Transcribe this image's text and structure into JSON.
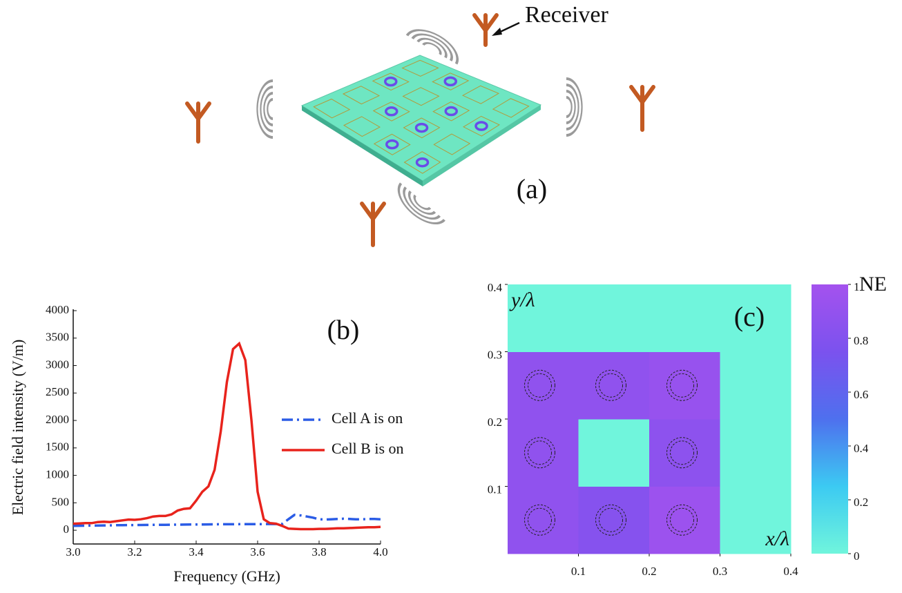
{
  "diagram": {
    "receiver_label": "Receiver",
    "panel_label": "(a)"
  },
  "chart_data": [
    {
      "type": "line",
      "panel_label": "(b)",
      "x_label": "Frequency (GHz)",
      "y_label": "Electric field intensity (V/m)",
      "x": [
        3.0,
        3.02,
        3.04,
        3.06,
        3.08,
        3.1,
        3.12,
        3.14,
        3.16,
        3.18,
        3.2,
        3.22,
        3.24,
        3.26,
        3.28,
        3.3,
        3.32,
        3.34,
        3.36,
        3.38,
        3.4,
        3.42,
        3.44,
        3.46,
        3.48,
        3.5,
        3.52,
        3.54,
        3.56,
        3.58,
        3.6,
        3.62,
        3.64,
        3.66,
        3.68,
        3.7,
        3.72,
        3.74,
        3.76,
        3.78,
        3.8,
        3.82,
        3.84,
        3.86,
        3.88,
        3.9,
        3.92,
        3.94,
        3.96,
        3.98,
        4.0
      ],
      "series": [
        {
          "name": "Cell A is on",
          "color": "#2b5ce6",
          "dash": "dashdot",
          "values": [
            80,
            82,
            84,
            85,
            86,
            88,
            90,
            92,
            93,
            94,
            95,
            96,
            97,
            98,
            99,
            100,
            101,
            102,
            103,
            104,
            105,
            106,
            107,
            108,
            109,
            110,
            110,
            111,
            111,
            112,
            112,
            112,
            113,
            113,
            115,
            200,
            280,
            270,
            250,
            230,
            200,
            195,
            200,
            205,
            210,
            205,
            200,
            200,
            205,
            205,
            200
          ]
        },
        {
          "name": "Cell B is on",
          "color": "#e8231c",
          "dash": "solid",
          "values": [
            120,
            125,
            130,
            130,
            150,
            155,
            150,
            165,
            180,
            195,
            190,
            200,
            220,
            250,
            260,
            260,
            290,
            360,
            390,
            400,
            540,
            700,
            800,
            1100,
            1800,
            2700,
            3300,
            3400,
            3100,
            2000,
            700,
            200,
            130,
            120,
            80,
            30,
            25,
            20,
            20,
            20,
            25,
            25,
            30,
            35,
            35,
            40,
            45,
            50,
            55,
            55,
            60
          ]
        }
      ],
      "xlim": [
        3.0,
        4.0
      ],
      "xticks": [
        {
          "value": 3,
          "label": "3.0"
        },
        3.2,
        3.4,
        3.6,
        3.8,
        {
          "value": 4,
          "label": "4.0"
        }
      ],
      "ylim": [
        -250,
        4000
      ],
      "yticks": [
        0,
        500,
        1000,
        1500,
        2000,
        2500,
        3000,
        3500,
        4000
      ]
    },
    {
      "type": "heatmap",
      "panel_label": "(c)",
      "x_label": "x/λ",
      "y_label": "y/λ",
      "colorbar_title": "NE",
      "xlim": [
        0,
        0.4
      ],
      "ylim": [
        0,
        0.4
      ],
      "xticks": [
        0.1,
        0.2,
        0.3,
        0.4
      ],
      "yticks": [
        0.1,
        0.2,
        0.3,
        0.4
      ],
      "z": [
        [
          0.88,
          0.82,
          0.95,
          0
        ],
        [
          0.88,
          0,
          0.86,
          0
        ],
        [
          0.88,
          0.88,
          0.92,
          0
        ],
        [
          0,
          0,
          0,
          0
        ]
      ],
      "zlim": [
        0,
        1
      ],
      "zticks": [
        0,
        0.2,
        0.4,
        0.6,
        0.8,
        1
      ],
      "colors": [
        "#70f5dc",
        "#3ccaf2",
        "#4e70ee",
        "#7b52ee",
        "#a452ee"
      ]
    }
  ]
}
